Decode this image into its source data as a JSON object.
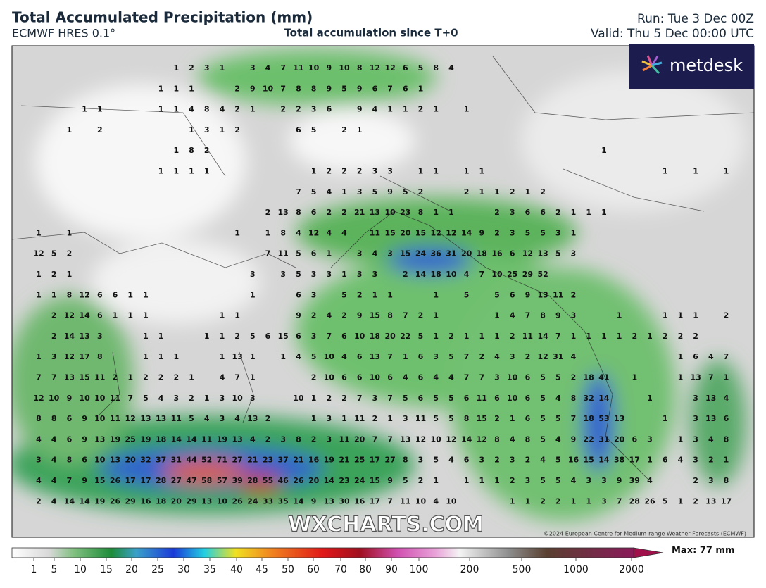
{
  "header": {
    "title": "Total Accumulated Precipitation (mm)",
    "model": "ECMWF HRES 0.1°",
    "subtitle": "Total accumulation since T+0",
    "run": "Run: Tue 3 Dec 00Z",
    "valid": "Valid: Thu 5 Dec 00:00 UTC"
  },
  "logo": "metdesk",
  "watermark": "WXCHARTS.COM",
  "copyright": "©2024 European Centre for Medium-range Weather Forecasts (ECMWF)",
  "map": {
    "rows": [
      [
        null,
        null,
        null,
        null,
        null,
        null,
        null,
        null,
        null,
        1,
        2,
        3,
        1,
        null,
        3,
        4,
        7,
        11,
        10,
        9,
        10,
        8,
        12,
        12,
        6,
        5,
        8,
        4
      ],
      [
        null,
        null,
        null,
        null,
        null,
        null,
        null,
        null,
        1,
        1,
        1,
        null,
        null,
        2,
        9,
        10,
        7,
        8,
        8,
        9,
        5,
        9,
        6,
        7,
        6,
        1
      ],
      [
        null,
        null,
        null,
        1,
        1,
        null,
        null,
        null,
        1,
        1,
        4,
        8,
        4,
        2,
        1,
        null,
        2,
        2,
        3,
        6,
        null,
        9,
        4,
        1,
        1,
        2,
        1,
        null,
        1
      ],
      [
        null,
        null,
        1,
        null,
        2,
        null,
        null,
        null,
        null,
        null,
        1,
        3,
        1,
        2,
        null,
        null,
        null,
        6,
        5,
        null,
        2,
        1
      ],
      [
        null,
        null,
        null,
        null,
        null,
        null,
        null,
        null,
        null,
        1,
        8,
        2,
        null,
        null,
        null,
        null,
        null,
        null,
        null,
        null,
        null,
        null,
        null,
        null,
        null,
        null,
        null,
        null,
        null,
        null,
        null,
        null,
        null,
        null,
        null,
        null,
        null,
        1
      ],
      [
        null,
        null,
        null,
        null,
        null,
        null,
        null,
        null,
        1,
        1,
        1,
        1,
        null,
        null,
        null,
        null,
        null,
        null,
        1,
        2,
        2,
        2,
        3,
        3,
        null,
        1,
        1,
        null,
        1,
        1,
        null,
        null,
        null,
        null,
        null,
        null,
        null,
        null,
        null,
        null,
        null,
        1,
        null,
        1,
        null,
        1
      ],
      [
        null,
        null,
        null,
        null,
        null,
        null,
        null,
        null,
        null,
        null,
        null,
        null,
        null,
        null,
        null,
        null,
        null,
        7,
        5,
        4,
        1,
        3,
        5,
        9,
        5,
        2,
        null,
        null,
        2,
        1,
        1,
        2,
        1,
        2
      ],
      [
        null,
        null,
        null,
        null,
        null,
        null,
        null,
        null,
        null,
        null,
        null,
        null,
        null,
        null,
        null,
        2,
        13,
        8,
        6,
        2,
        2,
        21,
        13,
        10,
        23,
        8,
        1,
        1,
        null,
        null,
        2,
        3,
        6,
        6,
        2,
        1,
        1,
        1
      ],
      [
        1,
        null,
        1,
        null,
        null,
        null,
        null,
        null,
        null,
        null,
        null,
        null,
        null,
        1,
        null,
        1,
        8,
        4,
        12,
        4,
        4,
        null,
        11,
        15,
        20,
        15,
        12,
        12,
        14,
        9,
        2,
        3,
        5,
        5,
        3,
        1
      ],
      [
        12,
        5,
        2,
        null,
        null,
        null,
        null,
        null,
        null,
        null,
        null,
        null,
        null,
        null,
        null,
        7,
        11,
        5,
        6,
        1,
        null,
        3,
        4,
        3,
        15,
        24,
        36,
        31,
        20,
        18,
        16,
        6,
        12,
        13,
        5,
        3
      ],
      [
        1,
        2,
        1,
        null,
        null,
        null,
        null,
        null,
        null,
        null,
        null,
        null,
        null,
        null,
        3,
        null,
        3,
        5,
        3,
        3,
        1,
        3,
        3,
        null,
        2,
        14,
        18,
        10,
        4,
        7,
        10,
        25,
        29,
        52
      ],
      [
        1,
        1,
        8,
        12,
        6,
        6,
        1,
        1,
        null,
        null,
        null,
        null,
        null,
        null,
        1,
        null,
        null,
        6,
        3,
        null,
        5,
        2,
        1,
        1,
        null,
        null,
        1,
        null,
        5,
        null,
        5,
        6,
        9,
        13,
        11,
        2
      ],
      [
        null,
        2,
        12,
        14,
        6,
        1,
        1,
        1,
        null,
        null,
        null,
        null,
        1,
        1,
        null,
        null,
        null,
        9,
        2,
        4,
        2,
        9,
        15,
        8,
        7,
        2,
        1,
        null,
        null,
        null,
        1,
        4,
        7,
        8,
        9,
        3,
        null,
        null,
        1,
        null,
        null,
        1,
        1,
        1,
        null,
        2
      ],
      [
        null,
        2,
        14,
        13,
        3,
        null,
        null,
        1,
        1,
        null,
        null,
        1,
        1,
        2,
        5,
        6,
        15,
        6,
        3,
        7,
        6,
        10,
        18,
        20,
        22,
        5,
        1,
        2,
        1,
        1,
        1,
        2,
        11,
        14,
        7,
        1,
        1,
        1,
        1,
        2,
        1,
        2,
        2,
        2
      ],
      [
        1,
        3,
        12,
        17,
        8,
        null,
        null,
        1,
        1,
        1,
        null,
        null,
        1,
        13,
        1,
        null,
        1,
        4,
        5,
        10,
        4,
        6,
        13,
        7,
        1,
        6,
        3,
        5,
        7,
        2,
        4,
        3,
        2,
        12,
        31,
        4,
        null,
        null,
        null,
        null,
        null,
        null,
        1,
        6,
        4,
        7
      ],
      [
        7,
        7,
        13,
        15,
        11,
        2,
        1,
        2,
        2,
        2,
        1,
        null,
        4,
        7,
        1,
        null,
        null,
        null,
        2,
        10,
        6,
        6,
        10,
        6,
        4,
        6,
        4,
        4,
        7,
        7,
        3,
        10,
        6,
        5,
        5,
        2,
        18,
        41,
        null,
        1,
        null,
        null,
        1,
        13,
        7,
        1
      ],
      [
        12,
        10,
        9,
        10,
        10,
        11,
        7,
        5,
        4,
        3,
        2,
        1,
        3,
        10,
        3,
        null,
        null,
        10,
        1,
        2,
        2,
        7,
        3,
        7,
        5,
        6,
        5,
        5,
        6,
        11,
        6,
        10,
        6,
        5,
        4,
        8,
        32,
        14,
        null,
        null,
        1,
        null,
        null,
        3,
        13,
        4
      ],
      [
        8,
        8,
        6,
        9,
        10,
        11,
        12,
        13,
        13,
        11,
        5,
        4,
        3,
        4,
        13,
        2,
        null,
        null,
        1,
        3,
        1,
        11,
        2,
        1,
        3,
        11,
        5,
        5,
        8,
        15,
        2,
        1,
        6,
        5,
        5,
        7,
        18,
        53,
        13,
        null,
        null,
        1,
        null,
        3,
        13,
        6
      ],
      [
        4,
        4,
        6,
        9,
        13,
        19,
        25,
        19,
        18,
        14,
        14,
        11,
        19,
        13,
        4,
        2,
        3,
        8,
        2,
        3,
        11,
        20,
        7,
        7,
        13,
        12,
        10,
        12,
        14,
        12,
        8,
        4,
        8,
        5,
        4,
        9,
        22,
        31,
        20,
        6,
        3,
        null,
        1,
        3,
        4,
        8
      ],
      [
        3,
        4,
        8,
        6,
        10,
        13,
        20,
        32,
        37,
        31,
        44,
        52,
        71,
        27,
        21,
        23,
        37,
        21,
        16,
        19,
        21,
        25,
        17,
        27,
        8,
        3,
        5,
        4,
        6,
        3,
        2,
        3,
        2,
        4,
        5,
        16,
        15,
        14,
        38,
        17,
        1,
        6,
        4,
        3,
        2,
        1
      ],
      [
        4,
        4,
        7,
        9,
        15,
        26,
        17,
        17,
        28,
        27,
        47,
        58,
        57,
        39,
        28,
        55,
        46,
        26,
        20,
        14,
        23,
        24,
        15,
        9,
        5,
        2,
        1,
        null,
        1,
        1,
        1,
        2,
        3,
        5,
        5,
        4,
        3,
        3,
        9,
        39,
        4,
        null,
        null,
        2,
        3,
        8
      ],
      [
        2,
        4,
        14,
        14,
        19,
        26,
        29,
        16,
        18,
        20,
        29,
        13,
        10,
        26,
        24,
        33,
        35,
        14,
        9,
        13,
        30,
        16,
        17,
        7,
        11,
        10,
        4,
        10,
        null,
        null,
        null,
        1,
        1,
        2,
        2,
        1,
        1,
        3,
        7,
        28,
        26,
        5,
        1,
        2,
        13,
        17
      ]
    ]
  },
  "colorbar": {
    "ticks": [
      1,
      5,
      10,
      15,
      20,
      25,
      30,
      35,
      40,
      45,
      50,
      60,
      70,
      80,
      90,
      100,
      200,
      500,
      1000,
      2000
    ],
    "max_label": "Max: 77 mm"
  }
}
